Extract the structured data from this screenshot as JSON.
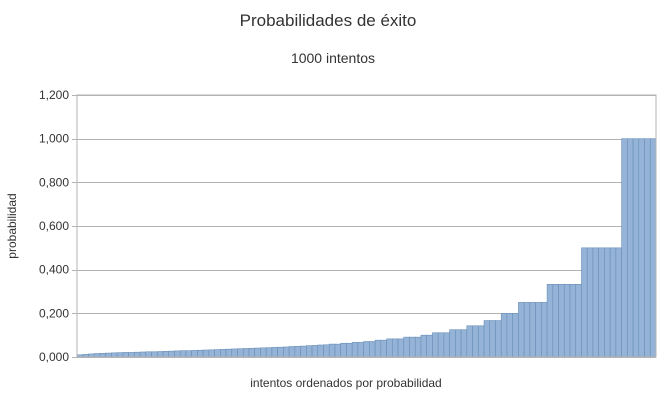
{
  "chart_data": {
    "type": "bar",
    "title": "Probabilidades de éxito",
    "subtitle": "1000 intentos",
    "xlabel": "intentos ordenados por probabilidad",
    "ylabel": "probabilidad",
    "ylim": [
      0,
      1.2
    ],
    "yticks": [
      0,
      0.2,
      0.4,
      0.6,
      0.8,
      1.0,
      1.2
    ],
    "ytick_labels": [
      "0,000",
      "0,200",
      "0,400",
      "0,600",
      "0,800",
      "1,000",
      "1,200"
    ],
    "grid": true,
    "legend": "none",
    "colors": {
      "bar_fill": "#94b3d6",
      "bar_stroke": "#6a8fb8",
      "grid": "#b3b3b3",
      "axis": "#b3b3b3"
    },
    "series": [
      {
        "values": [
          0.01,
          0.012,
          0.014,
          0.016,
          0.017,
          0.018,
          0.019,
          0.02,
          0.021,
          0.021,
          0.022,
          0.023,
          0.024,
          0.024,
          0.025,
          0.026,
          0.027,
          0.028,
          0.029,
          0.029,
          0.03,
          0.031,
          0.032,
          0.033,
          0.034,
          0.035,
          0.036,
          0.037,
          0.038,
          0.039,
          0.04,
          0.041,
          0.042,
          0.043,
          0.044,
          0.045,
          0.046,
          0.048,
          0.049,
          0.05,
          0.052,
          0.053,
          0.055,
          0.056,
          0.059,
          0.059,
          0.063,
          0.063,
          0.067,
          0.067,
          0.071,
          0.071,
          0.077,
          0.077,
          0.083,
          0.083,
          0.083,
          0.091,
          0.091,
          0.091,
          0.1,
          0.1,
          0.111,
          0.111,
          0.111,
          0.125,
          0.125,
          0.125,
          0.143,
          0.143,
          0.143,
          0.167,
          0.167,
          0.167,
          0.2,
          0.2,
          0.2,
          0.25,
          0.25,
          0.25,
          0.25,
          0.25,
          0.333,
          0.333,
          0.333,
          0.333,
          0.333,
          0.333,
          0.5,
          0.5,
          0.5,
          0.5,
          0.5,
          0.5,
          0.5,
          1.0,
          1.0,
          1.0,
          1.0,
          1.0,
          1.0
        ]
      }
    ]
  }
}
